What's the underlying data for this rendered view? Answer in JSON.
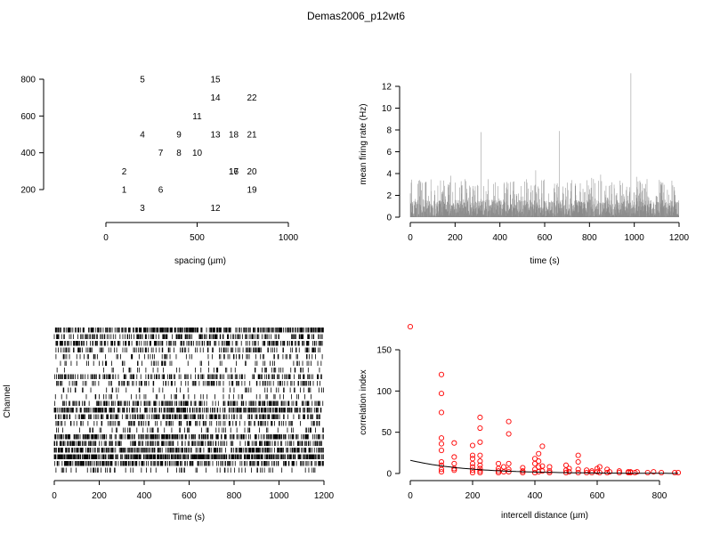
{
  "page_title": "Demas2006_p12wt6",
  "chart_data": [
    {
      "type": "scatter",
      "name": "electrode-layout",
      "xlabel": "spacing (µm)",
      "ylabel": "",
      "xlim": [
        0,
        1000
      ],
      "ylim": [
        200,
        800
      ],
      "xticks": [
        0,
        500,
        1000
      ],
      "yticks": [
        200,
        400,
        600,
        800
      ],
      "points": [
        {
          "label": "1",
          "x": 100,
          "y": 200
        },
        {
          "label": "2",
          "x": 100,
          "y": 300
        },
        {
          "label": "3",
          "x": 200,
          "y": 100
        },
        {
          "label": "4",
          "x": 200,
          "y": 500
        },
        {
          "label": "5",
          "x": 200,
          "y": 800
        },
        {
          "label": "6",
          "x": 300,
          "y": 200
        },
        {
          "label": "7",
          "x": 300,
          "y": 400
        },
        {
          "label": "8",
          "x": 400,
          "y": 400
        },
        {
          "label": "9",
          "x": 400,
          "y": 500
        },
        {
          "label": "10",
          "x": 500,
          "y": 400
        },
        {
          "label": "11",
          "x": 500,
          "y": 600
        },
        {
          "label": "12",
          "x": 600,
          "y": 100
        },
        {
          "label": "13",
          "x": 600,
          "y": 500
        },
        {
          "label": "14",
          "x": 600,
          "y": 700
        },
        {
          "label": "15",
          "x": 600,
          "y": 800
        },
        {
          "label": "16",
          "x": 700,
          "y": 300
        },
        {
          "label": "17",
          "x": 700,
          "y": 300
        },
        {
          "label": "18",
          "x": 700,
          "y": 500
        },
        {
          "label": "19",
          "x": 800,
          "y": 200
        },
        {
          "label": "20",
          "x": 800,
          "y": 300
        },
        {
          "label": "21",
          "x": 800,
          "y": 500
        },
        {
          "label": "22",
          "x": 800,
          "y": 700
        }
      ]
    },
    {
      "type": "bar",
      "name": "mean-firing-rate",
      "xlabel": "time (s)",
      "ylabel": "mean firing rate (Hz)",
      "xlim": [
        0,
        1200
      ],
      "ylim": [
        0,
        12
      ],
      "xticks": [
        0,
        200,
        400,
        600,
        800,
        1000,
        1200
      ],
      "yticks": [
        0,
        2,
        4,
        6,
        8,
        10,
        12
      ],
      "bin_width_s": 1,
      "baseline_rate_range_hz": [
        0,
        3.5
      ],
      "peaks": [
        {
          "t": 180,
          "rate": 3.8
        },
        {
          "t": 315,
          "rate": 7.8
        },
        {
          "t": 380,
          "rate": 3.2
        },
        {
          "t": 560,
          "rate": 4.3
        },
        {
          "t": 665,
          "rate": 7.9
        },
        {
          "t": 720,
          "rate": 3.4
        },
        {
          "t": 810,
          "rate": 3.6
        },
        {
          "t": 850,
          "rate": 3.9
        },
        {
          "t": 985,
          "rate": 13.2
        },
        {
          "t": 1010,
          "rate": 3.7
        },
        {
          "t": 1120,
          "rate": 3.0
        }
      ]
    },
    {
      "type": "raster",
      "name": "spike-raster",
      "xlabel": "Time (s)",
      "ylabel": "Channel",
      "xlim": [
        0,
        1200
      ],
      "xticks": [
        0,
        200,
        400,
        600,
        800,
        1000,
        1200
      ],
      "channel_count": 22,
      "channel_density": [
        0.55,
        0.35,
        0.45,
        0.25,
        0.15,
        0.12,
        0.08,
        0.35,
        0.2,
        0.12,
        0.1,
        0.45,
        0.55,
        0.4,
        0.25,
        0.12,
        0.5,
        0.4,
        0.5,
        0.7,
        0.45,
        0.15
      ]
    },
    {
      "type": "scatter",
      "name": "correlation-vs-distance",
      "xlabel": "intercell distance (µm)",
      "ylabel": "correlation index",
      "xlim": [
        0,
        850
      ],
      "ylim": [
        0,
        175
      ],
      "xticks": [
        0,
        200,
        400,
        600,
        800
      ],
      "yticks": [
        0,
        50,
        100,
        150
      ],
      "point_color": "#ff0000",
      "fit_color": "#000000",
      "points": [
        [
          0,
          178
        ],
        [
          100,
          120
        ],
        [
          100,
          97
        ],
        [
          100,
          74
        ],
        [
          100,
          43
        ],
        [
          100,
          36
        ],
        [
          100,
          28
        ],
        [
          100,
          14
        ],
        [
          100,
          10
        ],
        [
          100,
          5
        ],
        [
          100,
          2
        ],
        [
          141,
          37
        ],
        [
          141,
          20
        ],
        [
          141,
          12
        ],
        [
          141,
          6
        ],
        [
          141,
          4
        ],
        [
          200,
          34
        ],
        [
          200,
          22
        ],
        [
          200,
          18
        ],
        [
          200,
          12
        ],
        [
          200,
          8
        ],
        [
          200,
          4
        ],
        [
          200,
          1
        ],
        [
          224,
          68
        ],
        [
          224,
          55
        ],
        [
          224,
          38
        ],
        [
          224,
          22
        ],
        [
          224,
          15
        ],
        [
          224,
          10
        ],
        [
          224,
          6
        ],
        [
          224,
          3
        ],
        [
          224,
          1
        ],
        [
          283,
          12
        ],
        [
          283,
          6
        ],
        [
          283,
          3
        ],
        [
          283,
          1
        ],
        [
          300,
          8
        ],
        [
          300,
          2
        ],
        [
          316,
          63
        ],
        [
          316,
          48
        ],
        [
          316,
          12
        ],
        [
          316,
          5
        ],
        [
          316,
          2
        ],
        [
          361,
          7
        ],
        [
          361,
          3
        ],
        [
          361,
          1
        ],
        [
          400,
          18
        ],
        [
          400,
          12
        ],
        [
          400,
          5
        ],
        [
          400,
          1
        ],
        [
          412,
          24
        ],
        [
          412,
          15
        ],
        [
          412,
          8
        ],
        [
          412,
          2
        ],
        [
          424,
          33
        ],
        [
          424,
          9
        ],
        [
          424,
          3
        ],
        [
          447,
          8
        ],
        [
          447,
          3
        ],
        [
          447,
          1
        ],
        [
          500,
          10
        ],
        [
          500,
          4
        ],
        [
          500,
          1
        ],
        [
          510,
          6
        ],
        [
          510,
          2
        ],
        [
          539,
          22
        ],
        [
          539,
          14
        ],
        [
          539,
          5
        ],
        [
          539,
          1
        ],
        [
          566,
          4
        ],
        [
          566,
          1
        ],
        [
          583,
          3
        ],
        [
          583,
          1
        ],
        [
          600,
          6
        ],
        [
          600,
          2
        ],
        [
          608,
          8
        ],
        [
          608,
          1
        ],
        [
          632,
          5
        ],
        [
          632,
          1
        ],
        [
          640,
          2
        ],
        [
          671,
          3
        ],
        [
          671,
          1
        ],
        [
          700,
          2
        ],
        [
          700,
          1
        ],
        [
          707,
          2
        ],
        [
          707,
          1
        ],
        [
          721,
          1
        ],
        [
          728,
          2
        ],
        [
          762,
          1
        ],
        [
          781,
          2
        ],
        [
          806,
          1
        ],
        [
          849,
          1
        ],
        [
          860,
          1
        ]
      ],
      "fit": {
        "model": "exponential",
        "a": 16,
        "decay_um": 180
      }
    }
  ]
}
